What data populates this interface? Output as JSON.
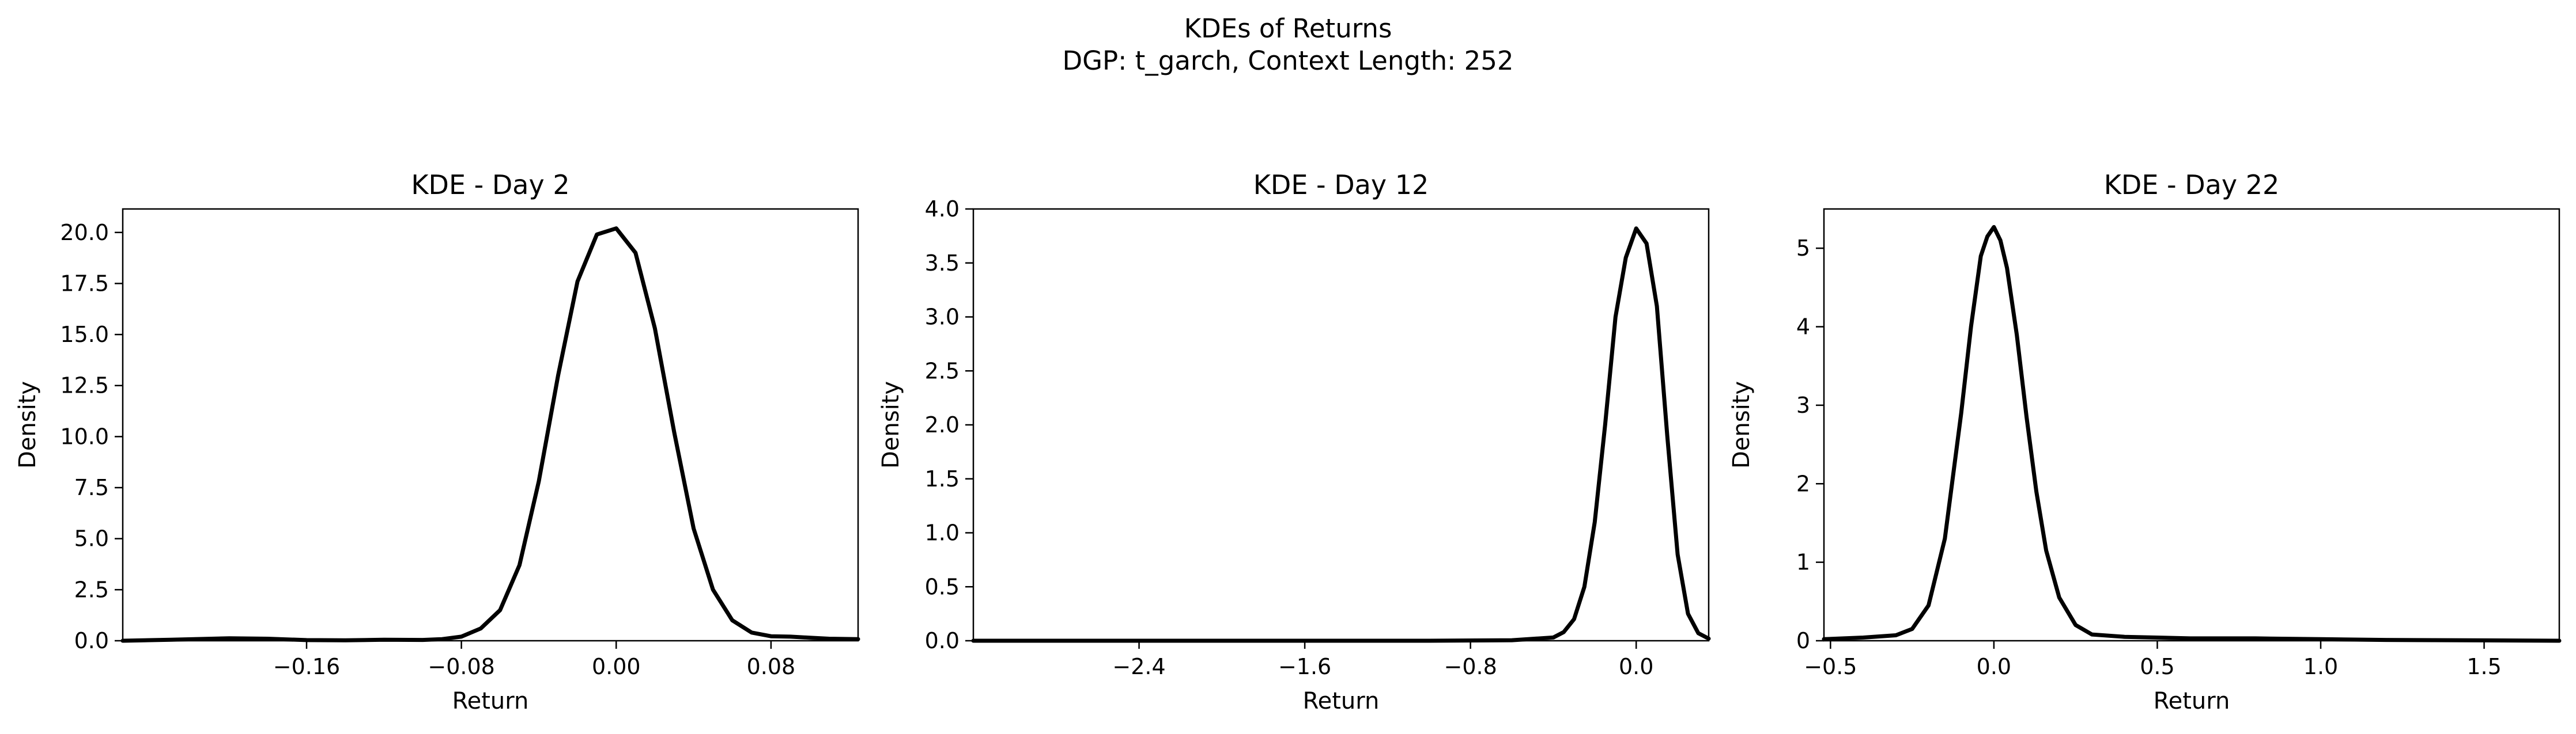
{
  "figure": {
    "title_line1": "KDEs of Returns",
    "title_line2": "DGP: t_garch, Context Length: 252"
  },
  "chart_data": [
    {
      "type": "line",
      "title": "KDE - Day 2",
      "xlabel": "Return",
      "ylabel": "Density",
      "xlim": [
        -0.255,
        0.125
      ],
      "ylim": [
        0,
        21.15
      ],
      "xticks": [
        -0.16,
        -0.08,
        0.0,
        0.08
      ],
      "xtick_labels": [
        "−0.16",
        "−0.08",
        "0.00",
        "0.08"
      ],
      "yticks": [
        0,
        2.5,
        5,
        7.5,
        10,
        12.5,
        15,
        17.5,
        20
      ],
      "ytick_labels": [
        "0.0",
        "2.5",
        "5.0",
        "7.5",
        "10.0",
        "12.5",
        "15.0",
        "17.5",
        "20.0"
      ],
      "series": [
        {
          "name": "KDE",
          "x": [
            -0.255,
            -0.23,
            -0.2,
            -0.18,
            -0.16,
            -0.14,
            -0.12,
            -0.1,
            -0.09,
            -0.08,
            -0.07,
            -0.06,
            -0.05,
            -0.04,
            -0.03,
            -0.02,
            -0.01,
            0.0,
            0.01,
            0.02,
            0.03,
            0.04,
            0.05,
            0.06,
            0.07,
            0.08,
            0.09,
            0.1,
            0.11,
            0.125
          ],
          "y": [
            0.0,
            0.05,
            0.12,
            0.1,
            0.03,
            0.02,
            0.05,
            0.04,
            0.08,
            0.2,
            0.6,
            1.5,
            3.7,
            7.8,
            13.0,
            17.6,
            19.9,
            20.2,
            19.0,
            15.3,
            10.2,
            5.5,
            2.5,
            1.0,
            0.4,
            0.22,
            0.2,
            0.15,
            0.1,
            0.08
          ]
        }
      ]
    },
    {
      "type": "line",
      "title": "KDE - Day 12",
      "xlabel": "Return",
      "ylabel": "Density",
      "xlim": [
        -3.2,
        0.35
      ],
      "ylim": [
        0,
        4.0
      ],
      "xticks": [
        -2.4,
        -1.6,
        -0.8,
        0.0
      ],
      "xtick_labels": [
        "−2.4",
        "−1.6",
        "−0.8",
        "0.0"
      ],
      "yticks": [
        0,
        0.5,
        1,
        1.5,
        2,
        2.5,
        3,
        3.5,
        4
      ],
      "ytick_labels": [
        "0.0",
        "0.5",
        "1.0",
        "1.5",
        "2.0",
        "2.5",
        "3.0",
        "3.5",
        "4.0"
      ],
      "series": [
        {
          "name": "KDE",
          "x": [
            -3.2,
            -1.0,
            -0.6,
            -0.4,
            -0.35,
            -0.3,
            -0.25,
            -0.2,
            -0.15,
            -0.1,
            -0.05,
            0.0,
            0.05,
            0.1,
            0.15,
            0.2,
            0.25,
            0.3,
            0.35
          ],
          "y": [
            0.0,
            0.0,
            0.005,
            0.03,
            0.08,
            0.2,
            0.5,
            1.1,
            2.0,
            3.0,
            3.55,
            3.82,
            3.68,
            3.1,
            1.9,
            0.8,
            0.25,
            0.07,
            0.02
          ]
        }
      ]
    },
    {
      "type": "line",
      "title": "KDE - Day 22",
      "xlabel": "Return",
      "ylabel": "Density",
      "xlim": [
        -0.52,
        1.73
      ],
      "ylim": [
        0,
        5.5
      ],
      "xticks": [
        -0.5,
        0.0,
        0.5,
        1.0,
        1.5
      ],
      "xtick_labels": [
        "−0.5",
        "0.0",
        "0.5",
        "1.0",
        "1.5"
      ],
      "yticks": [
        0,
        1,
        2,
        3,
        4,
        5
      ],
      "ytick_labels": [
        "0",
        "1",
        "2",
        "3",
        "4",
        "5"
      ],
      "series": [
        {
          "name": "KDE",
          "x": [
            -0.52,
            -0.4,
            -0.3,
            -0.25,
            -0.2,
            -0.15,
            -0.1,
            -0.07,
            -0.04,
            -0.02,
            0.0,
            0.02,
            0.04,
            0.07,
            0.1,
            0.13,
            0.16,
            0.2,
            0.25,
            0.3,
            0.4,
            0.5,
            0.6,
            0.8,
            1.0,
            1.2,
            1.73
          ],
          "y": [
            0.02,
            0.04,
            0.07,
            0.15,
            0.45,
            1.3,
            2.9,
            4.0,
            4.9,
            5.15,
            5.27,
            5.1,
            4.75,
            3.9,
            2.85,
            1.9,
            1.15,
            0.55,
            0.2,
            0.08,
            0.05,
            0.04,
            0.03,
            0.03,
            0.02,
            0.01,
            0.0
          ]
        }
      ]
    }
  ]
}
